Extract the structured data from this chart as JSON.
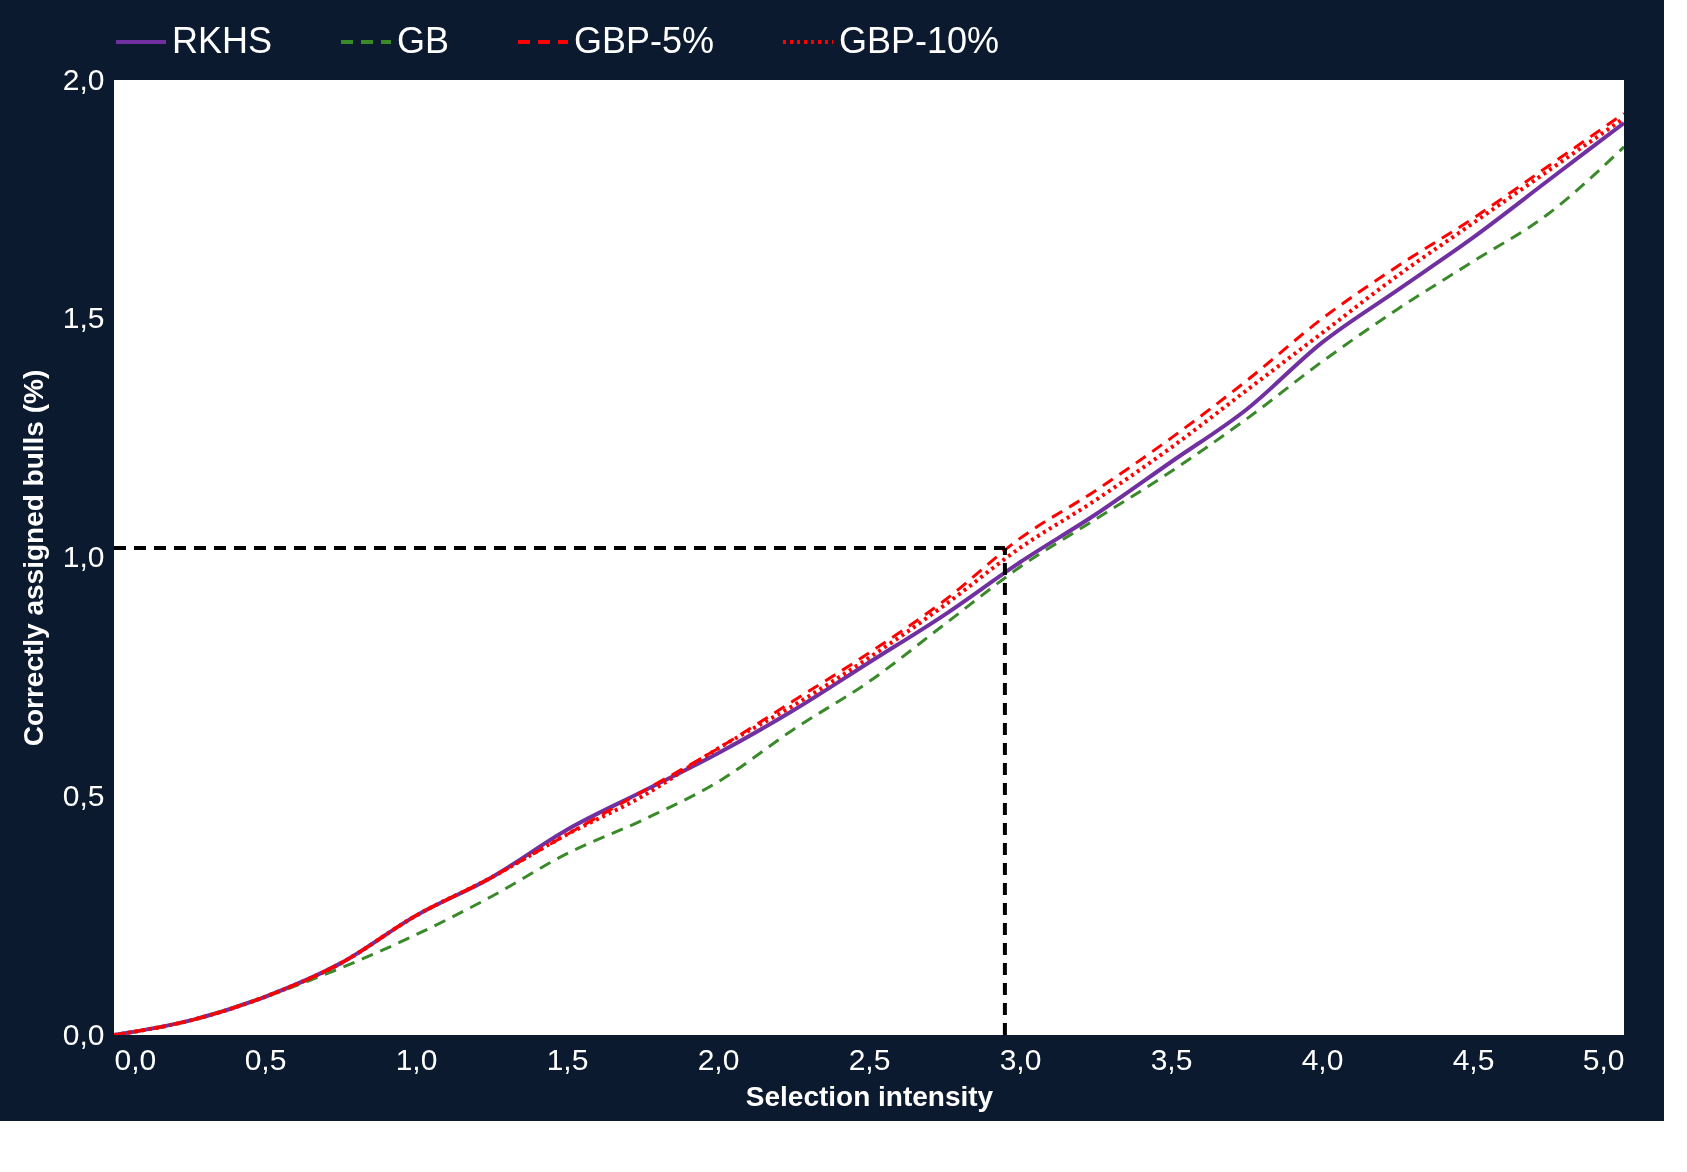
{
  "chart_data": {
    "type": "line",
    "xlabel": "Selection intensity",
    "ylabel": "Correctly assigned bulls (%)",
    "x": [
      0,
      0.25,
      0.5,
      0.75,
      1.0,
      1.25,
      1.5,
      1.75,
      2.0,
      2.25,
      2.5,
      2.75,
      3.0,
      3.25,
      3.5,
      3.75,
      4.0,
      4.25,
      4.5,
      4.75,
      5.0
    ],
    "series": [
      {
        "name": "RKHS",
        "color": "#7030a0",
        "line_style": "solid",
        "values": [
          0,
          0.03,
          0.08,
          0.15,
          0.25,
          0.33,
          0.43,
          0.51,
          0.59,
          0.68,
          0.78,
          0.88,
          0.99,
          1.09,
          1.2,
          1.31,
          1.45,
          1.56,
          1.67,
          1.79,
          1.91
        ]
      },
      {
        "name": "GB",
        "color": "#3a8a2a",
        "line_style": "dashed",
        "values": [
          0,
          0.03,
          0.08,
          0.14,
          0.21,
          0.29,
          0.38,
          0.45,
          0.53,
          0.64,
          0.74,
          0.86,
          0.98,
          1.08,
          1.18,
          1.29,
          1.41,
          1.52,
          1.62,
          1.72,
          1.86
        ]
      },
      {
        "name": "GBP-5%",
        "color": "#ff0000",
        "line_style": "dashed",
        "values": [
          0,
          0.03,
          0.08,
          0.15,
          0.25,
          0.33,
          0.42,
          0.51,
          0.6,
          0.7,
          0.8,
          0.91,
          1.04,
          1.14,
          1.25,
          1.37,
          1.5,
          1.61,
          1.71,
          1.82,
          1.93
        ]
      },
      {
        "name": "GBP-10%",
        "color": "#ff0000",
        "line_style": "dotted",
        "values": [
          0,
          0.03,
          0.08,
          0.15,
          0.25,
          0.33,
          0.42,
          0.5,
          0.6,
          0.69,
          0.79,
          0.9,
          1.02,
          1.12,
          1.23,
          1.35,
          1.47,
          1.59,
          1.7,
          1.81,
          1.92
        ]
      }
    ],
    "xlim": [
      0,
      5
    ],
    "ylim": [
      0,
      2
    ],
    "xticks": [
      {
        "value": 0,
        "label": "0,0"
      },
      {
        "value": 0.5,
        "label": "0,5"
      },
      {
        "value": 1,
        "label": "1,0"
      },
      {
        "value": 1.5,
        "label": "1,5"
      },
      {
        "value": 2,
        "label": "2,0"
      },
      {
        "value": 2.5,
        "label": "2,5"
      },
      {
        "value": 3,
        "label": "3,0"
      },
      {
        "value": 3.5,
        "label": "3,5"
      },
      {
        "value": 4,
        "label": "4,0"
      },
      {
        "value": 4.5,
        "label": "4,5"
      },
      {
        "value": 5,
        "label": "5,0"
      }
    ],
    "yticks": [
      {
        "value": 0,
        "label": "0,0"
      },
      {
        "value": 0.5,
        "label": "0,5"
      },
      {
        "value": 1,
        "label": "1,0"
      },
      {
        "value": 1.5,
        "label": "1,5"
      },
      {
        "value": 2,
        "label": "2,0"
      }
    ],
    "ref_lines": [
      {
        "axis": "y",
        "value": 1.02,
        "color": "#000000",
        "line_style": "dashed"
      },
      {
        "axis": "x",
        "value": 2.95,
        "color": "#000000",
        "line_style": "dashed"
      }
    ],
    "grid": false,
    "legend": "top"
  }
}
